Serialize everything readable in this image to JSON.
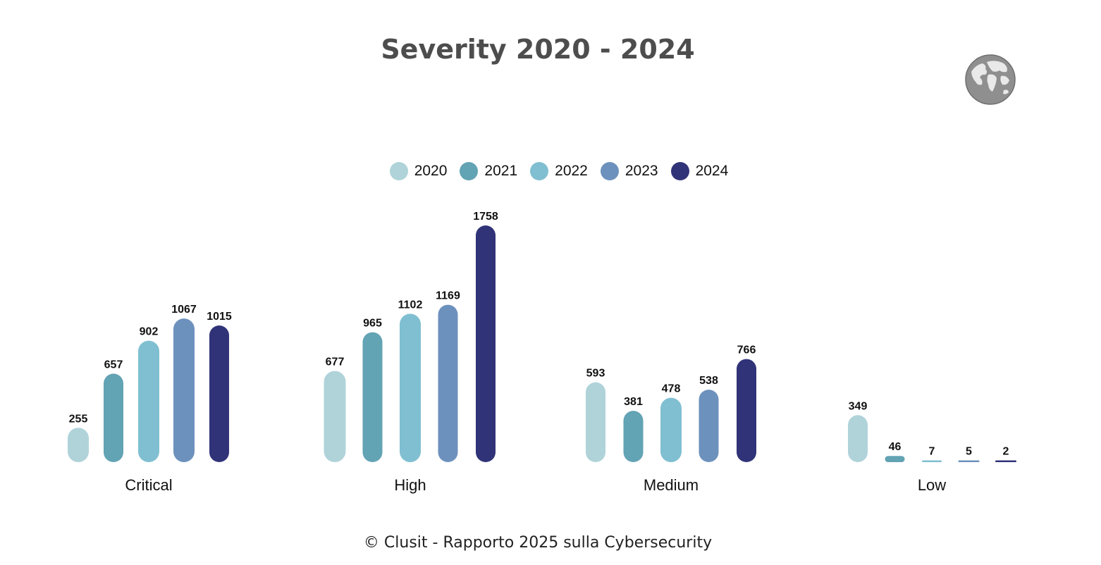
{
  "chart_data": {
    "type": "bar",
    "title": "Severity 2020 - 2024",
    "categories": [
      "Critical",
      "High",
      "Medium",
      "Low"
    ],
    "series": [
      {
        "name": "2020",
        "color": "#afd3d9",
        "values": [
          255,
          677,
          593,
          349
        ]
      },
      {
        "name": "2021",
        "color": "#62a3b4",
        "values": [
          657,
          965,
          381,
          46
        ]
      },
      {
        "name": "2022",
        "color": "#80bfd1",
        "values": [
          902,
          1102,
          478,
          7
        ]
      },
      {
        "name": "2023",
        "color": "#6d91bd",
        "values": [
          1067,
          1169,
          538,
          5
        ]
      },
      {
        "name": "2024",
        "color": "#313378",
        "values": [
          1015,
          1758,
          766,
          2
        ]
      }
    ],
    "xlabel": "",
    "ylabel": "",
    "ylim": [
      0,
      1758
    ],
    "legend_position": "top-center",
    "grid": false
  },
  "footer": "© Clusit - Rapporto 2025 sulla Cybersecurity",
  "logo": {
    "icon": "globe-icon"
  }
}
